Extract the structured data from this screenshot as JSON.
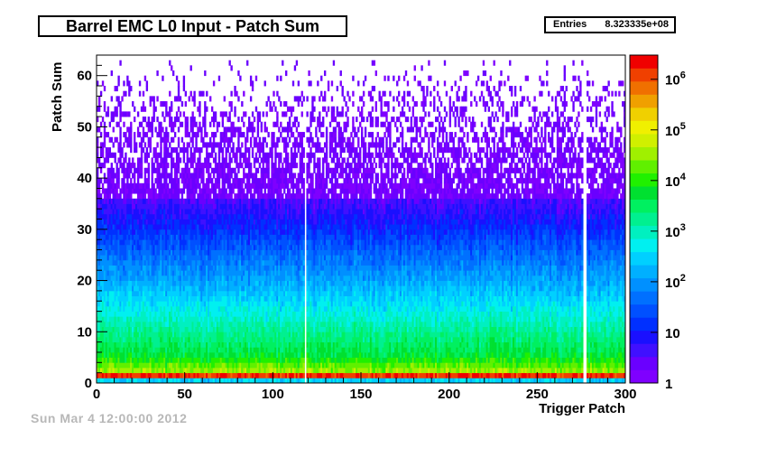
{
  "title": "Barrel EMC L0 Input - Patch Sum",
  "stats": {
    "label": "Entries",
    "value": "8.323335e+08"
  },
  "footer": "Sun Mar 4 12:00:00 2012",
  "chart_data": {
    "type": "heatmap",
    "xlabel": "Trigger Patch",
    "ylabel": "Patch Sum",
    "xlim": [
      0,
      300
    ],
    "ylim": [
      0,
      64
    ],
    "zscale": "log",
    "zlim": [
      1,
      3000000
    ],
    "x_bins": 300,
    "y_bins": 64,
    "x_ticks": [
      0,
      50,
      100,
      150,
      200,
      250,
      300
    ],
    "y_ticks": [
      0,
      10,
      20,
      30,
      40,
      50,
      60
    ],
    "z_ticks": [
      {
        "value": 1,
        "label": "1"
      },
      {
        "value": 10,
        "label": "10"
      },
      {
        "value": 100,
        "label": "10^2"
      },
      {
        "value": 1000,
        "label": "10^3"
      },
      {
        "value": 10000,
        "label": "10^4"
      },
      {
        "value": 100000,
        "label": "10^5"
      },
      {
        "value": 1000000,
        "label": "10^6"
      }
    ],
    "empty_columns": [
      118,
      276,
      277
    ],
    "peak_row_sum": 1,
    "peak_row_count": 1500000,
    "typical_counts": [
      {
        "patch_sum": 0,
        "count": 300
      },
      {
        "patch_sum": 1,
        "count": 1500000
      },
      {
        "patch_sum": 2,
        "count": 30000
      },
      {
        "patch_sum": 5,
        "count": 5000
      },
      {
        "patch_sum": 10,
        "count": 1500
      },
      {
        "patch_sum": 15,
        "count": 400
      },
      {
        "patch_sum": 20,
        "count": 120
      },
      {
        "patch_sum": 25,
        "count": 40
      },
      {
        "patch_sum": 30,
        "count": 12
      },
      {
        "patch_sum": 35,
        "count": 4
      },
      {
        "patch_sum": 40,
        "count": 2
      },
      {
        "patch_sum": 50,
        "count": 1
      },
      {
        "patch_sum": 62,
        "count": 1
      }
    ],
    "palette": [
      "#7f00ff",
      "#6a00ff",
      "#4010ff",
      "#1a10ff",
      "#0030ff",
      "#0050ff",
      "#0070ff",
      "#0090ff",
      "#00b0ff",
      "#00d0ff",
      "#00f0f0",
      "#00f0c0",
      "#00f090",
      "#00f060",
      "#00e030",
      "#20f000",
      "#60f000",
      "#a0f000",
      "#d0f000",
      "#f0f000",
      "#f0d000",
      "#f0a000",
      "#f07000",
      "#f04000",
      "#f00000"
    ]
  }
}
